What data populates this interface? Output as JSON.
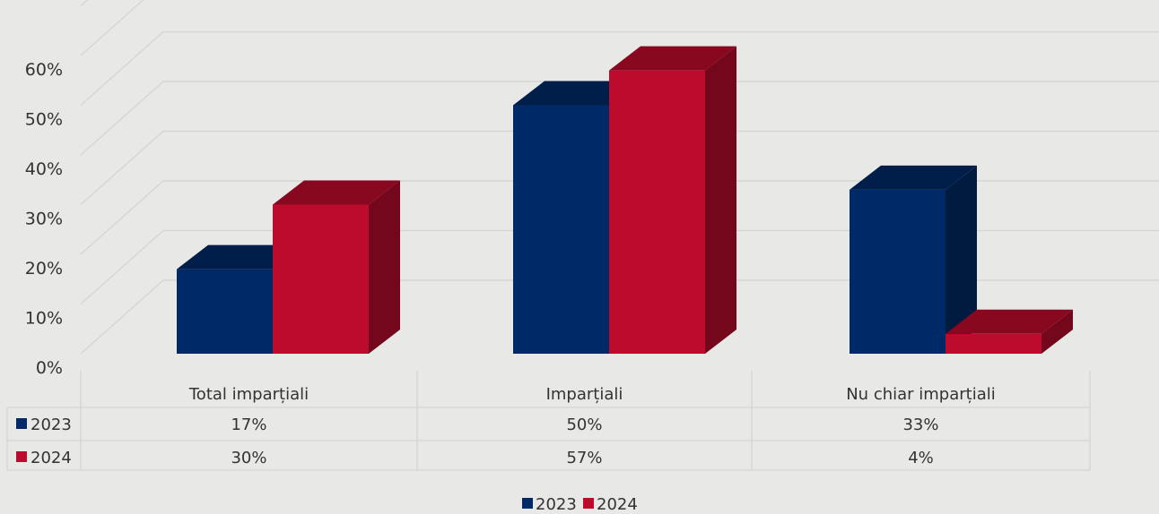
{
  "chart_data": {
    "type": "bar",
    "style": "3d-clustered-column-with-data-table",
    "categories": [
      "Total imparțiali",
      "Imparțiali",
      "Nu chiar imparțiali"
    ],
    "series": [
      {
        "name": "2023",
        "values": [
          17,
          50,
          33
        ],
        "labels": [
          "17%",
          "50%",
          "33%"
        ],
        "color": "#002a67"
      },
      {
        "name": "2024",
        "values": [
          30,
          57,
          4
        ],
        "labels": [
          "30%",
          "57%",
          "4%"
        ],
        "color": "#bd0b2d"
      }
    ],
    "y_ticks": [
      "0%",
      "10%",
      "20%",
      "30%",
      "40%",
      "50%",
      "60%"
    ],
    "ylim": [
      0,
      60
    ],
    "grid": true,
    "legend": {
      "position": "bottom",
      "items": [
        "2023",
        "2024"
      ]
    },
    "data_table": true
  }
}
